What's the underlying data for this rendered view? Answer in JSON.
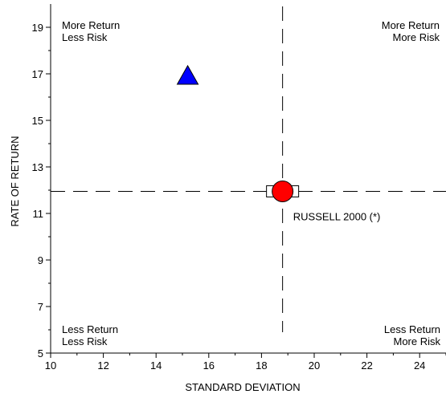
{
  "chart_data": {
    "type": "scatter",
    "xlabel": "STANDARD DEVIATION",
    "ylabel": "RATE OF RETURN",
    "xlim": [
      10,
      25
    ],
    "ylim": [
      5,
      20
    ],
    "x_ticks": [
      10,
      12,
      14,
      16,
      18,
      20,
      22,
      24
    ],
    "y_ticks": [
      5,
      7,
      9,
      11,
      13,
      15,
      17,
      19
    ],
    "reference_lines": {
      "x": 18.8,
      "y": 11.95
    },
    "quadrant_labels": {
      "top_left": [
        "More Return",
        "Less Risk"
      ],
      "top_right": [
        "More Return",
        "More Risk"
      ],
      "bottom_left": [
        "Less Return",
        "Less Risk"
      ],
      "bottom_right": [
        "Less Return",
        "More Risk"
      ]
    },
    "points": [
      {
        "x": 15.2,
        "y": 16.9,
        "marker": "triangle",
        "color": "#0000ff"
      },
      {
        "x": 18.8,
        "y": 11.95,
        "marker": "square",
        "color": "#ffffff"
      },
      {
        "x": 18.8,
        "y": 11.95,
        "marker": "circle",
        "color": "#ff0000"
      }
    ],
    "annotations": [
      {
        "text": "RUSSELL 2000 (*)",
        "x": 19.2,
        "y": 10.7
      }
    ]
  }
}
